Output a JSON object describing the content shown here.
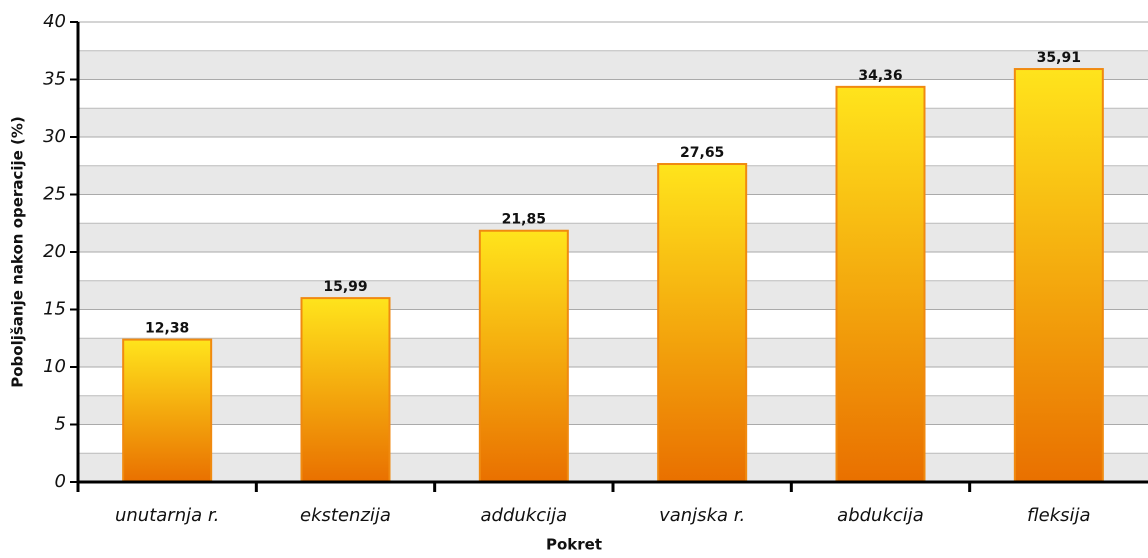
{
  "chart_data": {
    "type": "bar",
    "x_label": "Pokret",
    "y_label": "Poboljšanje nakon operacije (%)",
    "categories": [
      "unutarnja r.",
      "ekstenzija",
      "addukcija",
      "vanjska r.",
      "abdukcija",
      "fleksija"
    ],
    "values": [
      12.38,
      15.99,
      21.85,
      27.65,
      34.36,
      35.91
    ],
    "value_labels": [
      "12,38",
      "15,99",
      "21,85",
      "27,65",
      "34,36",
      "35,91"
    ],
    "color": "#f4a60c",
    "ylim": [
      0,
      40
    ],
    "yticks": [
      0,
      5,
      10,
      15,
      20,
      25,
      30,
      35,
      40
    ],
    "grid": true
  }
}
